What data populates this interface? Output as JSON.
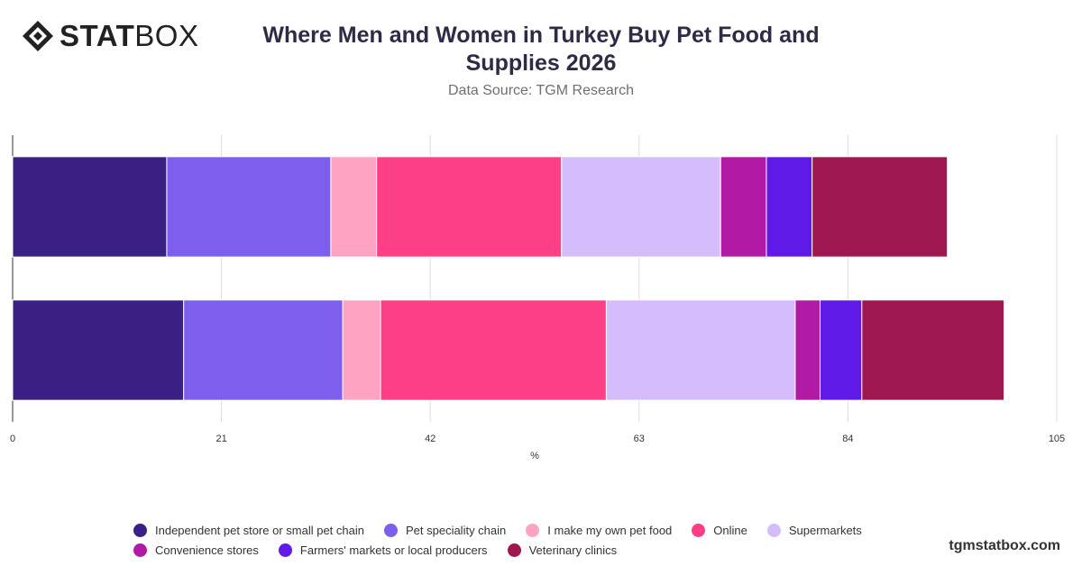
{
  "header": {
    "logo_bold": "STAT",
    "logo_light": "BOX",
    "title": "Where Men and Women in Turkey Buy Pet Food and Supplies 2026",
    "subtitle": "Data Source: TGM Research"
  },
  "footer": {
    "site": "tgmstatbox.com"
  },
  "chart_data": {
    "type": "bar",
    "orientation": "horizontal",
    "stacked": true,
    "title": "Where Men and Women in Turkey Buy Pet Food and Supplies 2026",
    "subtitle": "Data Source: TGM Research",
    "xlabel": "%",
    "ylabel": "",
    "xlim": [
      0,
      105
    ],
    "xticks": [
      0,
      21,
      42,
      63,
      84,
      105
    ],
    "grid": true,
    "legend_position": "bottom",
    "categories": [
      "",
      ""
    ],
    "series": [
      {
        "name": "Independent pet store or small pet chain",
        "color": "#3a1f85",
        "values": [
          15.5,
          17.2
        ]
      },
      {
        "name": "Pet speciality chain",
        "color": "#7e5fed",
        "values": [
          16.5,
          16.0
        ]
      },
      {
        "name": "I make my own pet food",
        "color": "#fea3c2",
        "values": [
          4.6,
          3.8
        ]
      },
      {
        "name": "Online",
        "color": "#fe3e86",
        "values": [
          18.6,
          22.7
        ]
      },
      {
        "name": "Supermarkets",
        "color": "#d5bdfb",
        "values": [
          16.0,
          19.0
        ]
      },
      {
        "name": "Convenience stores",
        "color": "#b01aa5",
        "values": [
          4.6,
          2.5
        ]
      },
      {
        "name": "Farmers' markets or local producers",
        "color": "#601ae8",
        "values": [
          4.6,
          4.2
        ]
      },
      {
        "name": "Veterinary clinics",
        "color": "#9e1750",
        "values": [
          13.6,
          14.3
        ]
      }
    ]
  }
}
